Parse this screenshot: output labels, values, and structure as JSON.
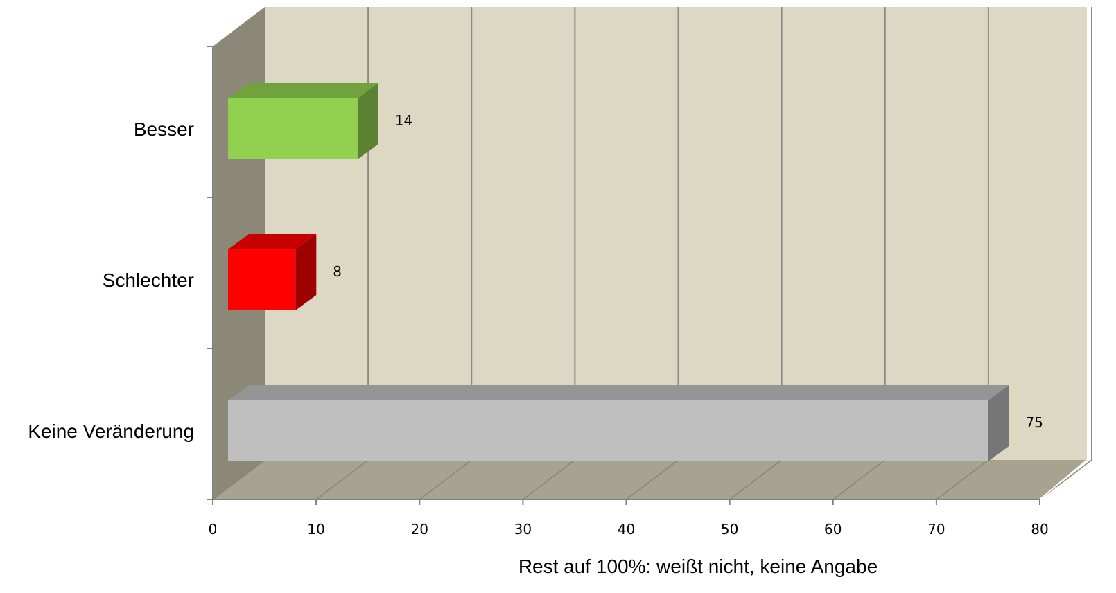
{
  "chart_data": {
    "type": "bar",
    "orientation": "horizontal",
    "three_d": true,
    "categories": [
      "Besser",
      "Schlechter",
      "Keine Veränderung"
    ],
    "values": [
      14,
      8,
      75
    ],
    "colors": [
      "#92d050",
      "#ff0000",
      "#bfbfbf"
    ],
    "xlabel": "Rest auf 100%: weißt nicht, keine Angabe",
    "xlim": [
      0,
      80
    ],
    "xticks": [
      0,
      10,
      20,
      30,
      40,
      50,
      60,
      70,
      80
    ],
    "grid": true
  }
}
